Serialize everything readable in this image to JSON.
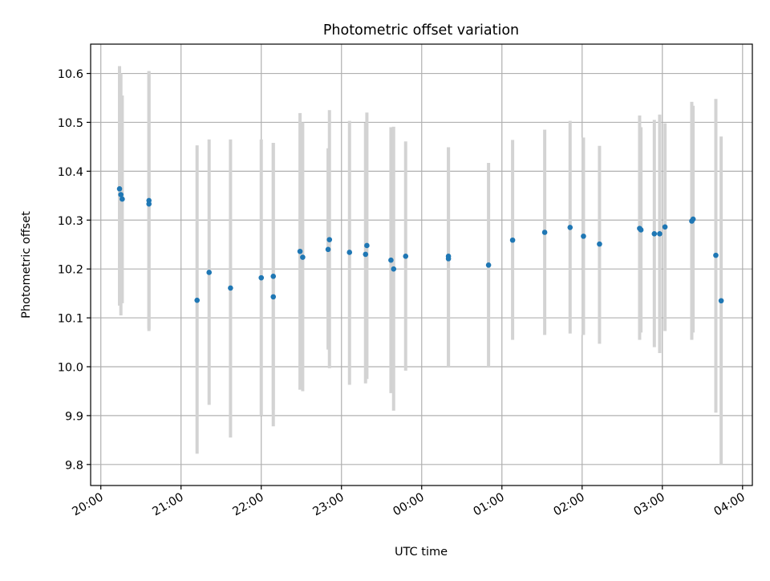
{
  "chart_data": {
    "type": "scatter",
    "title": "Photometric offset variation",
    "xlabel": "UTC time",
    "ylabel": "Photometric offset",
    "x_tick_labels": [
      "20:00",
      "21:00",
      "22:00",
      "23:00",
      "00:00",
      "01:00",
      "02:00",
      "03:00",
      "04:00"
    ],
    "y_tick_labels": [
      "9.8",
      "9.9",
      "10.0",
      "10.1",
      "10.2",
      "10.3",
      "10.4",
      "10.5",
      "10.6"
    ],
    "x_ticks_hours": [
      20,
      21,
      22,
      23,
      24,
      25,
      26,
      27,
      28
    ],
    "y_ticks": [
      9.8,
      9.9,
      10.0,
      10.1,
      10.2,
      10.3,
      10.4,
      10.5,
      10.6
    ],
    "xlim_hours": [
      19.873,
      28.122
    ],
    "ylim": [
      9.757,
      10.66
    ],
    "grid": true,
    "marker_color": "#1f77b4",
    "errorbar_color": "#d3d3d3",
    "points": [
      {
        "t": "20:14",
        "y": 10.364,
        "lo": 10.125,
        "hi": 10.615
      },
      {
        "t": "20:15",
        "y": 10.352,
        "lo": 10.105,
        "hi": 10.6
      },
      {
        "t": "20:16",
        "y": 10.343,
        "lo": 10.13,
        "hi": 10.555
      },
      {
        "t": "20:36",
        "y": 10.34,
        "lo": 10.078,
        "hi": 10.605
      },
      {
        "t": "20:36",
        "y": 10.333,
        "lo": 10.073,
        "hi": 10.603
      },
      {
        "t": "21:12",
        "y": 10.136,
        "lo": 9.822,
        "hi": 10.453
      },
      {
        "t": "21:21",
        "y": 10.193,
        "lo": 9.922,
        "hi": 10.465
      },
      {
        "t": "21:37",
        "y": 10.161,
        "lo": 9.855,
        "hi": 10.465
      },
      {
        "t": "22:00",
        "y": 10.182,
        "lo": 9.9,
        "hi": 10.465
      },
      {
        "t": "22:09",
        "y": 10.185,
        "lo": 9.912,
        "hi": 10.458
      },
      {
        "t": "22:09",
        "y": 10.143,
        "lo": 9.878,
        "hi": 10.458
      },
      {
        "t": "22:29",
        "y": 10.236,
        "lo": 9.953,
        "hi": 10.519
      },
      {
        "t": "22:31",
        "y": 10.224,
        "lo": 9.95,
        "hi": 10.5
      },
      {
        "t": "22:50",
        "y": 10.24,
        "lo": 10.035,
        "hi": 10.447
      },
      {
        "t": "22:51",
        "y": 10.26,
        "lo": 9.997,
        "hi": 10.525
      },
      {
        "t": "23:06",
        "y": 10.234,
        "lo": 9.963,
        "hi": 10.503
      },
      {
        "t": "23:18",
        "y": 10.23,
        "lo": 9.966,
        "hi": 10.499
      },
      {
        "t": "23:19",
        "y": 10.248,
        "lo": 9.975,
        "hi": 10.52
      },
      {
        "t": "23:37",
        "y": 10.218,
        "lo": 9.946,
        "hi": 10.49
      },
      {
        "t": "23:39",
        "y": 10.2,
        "lo": 9.91,
        "hi": 10.491
      },
      {
        "t": "23:48",
        "y": 10.226,
        "lo": 9.992,
        "hi": 10.461
      },
      {
        "t": "00:20",
        "y": 10.226,
        "lo": 10.0,
        "hi": 10.449
      },
      {
        "t": "00:20",
        "y": 10.221,
        "lo": 10.0,
        "hi": 10.449
      },
      {
        "t": "00:50",
        "y": 10.208,
        "lo": 10.0,
        "hi": 10.417
      },
      {
        "t": "01:08",
        "y": 10.259,
        "lo": 10.055,
        "hi": 10.464
      },
      {
        "t": "01:32",
        "y": 10.275,
        "lo": 10.065,
        "hi": 10.485
      },
      {
        "t": "01:51",
        "y": 10.285,
        "lo": 10.068,
        "hi": 10.503
      },
      {
        "t": "02:01",
        "y": 10.267,
        "lo": 10.065,
        "hi": 10.469
      },
      {
        "t": "02:13",
        "y": 10.251,
        "lo": 10.047,
        "hi": 10.452
      },
      {
        "t": "02:43",
        "y": 10.283,
        "lo": 10.055,
        "hi": 10.514
      },
      {
        "t": "02:44",
        "y": 10.28,
        "lo": 10.07,
        "hi": 10.49
      },
      {
        "t": "02:54",
        "y": 10.272,
        "lo": 10.04,
        "hi": 10.505
      },
      {
        "t": "02:58",
        "y": 10.272,
        "lo": 10.028,
        "hi": 10.516
      },
      {
        "t": "03:02",
        "y": 10.286,
        "lo": 10.073,
        "hi": 10.498
      },
      {
        "t": "03:22",
        "y": 10.298,
        "lo": 10.055,
        "hi": 10.542
      },
      {
        "t": "03:23",
        "y": 10.302,
        "lo": 10.07,
        "hi": 10.534
      },
      {
        "t": "03:40",
        "y": 10.228,
        "lo": 9.906,
        "hi": 10.548
      },
      {
        "t": "03:44",
        "y": 10.135,
        "lo": 9.8,
        "hi": 10.471
      }
    ]
  }
}
